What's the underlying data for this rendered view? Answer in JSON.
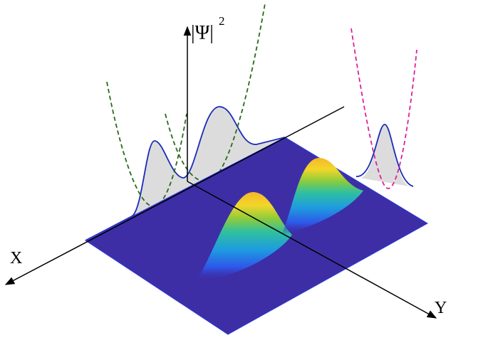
{
  "axes": {
    "z_label": "|Ψ|",
    "z_exponent": "2",
    "x_label": "X",
    "y_label": "Y"
  }
}
